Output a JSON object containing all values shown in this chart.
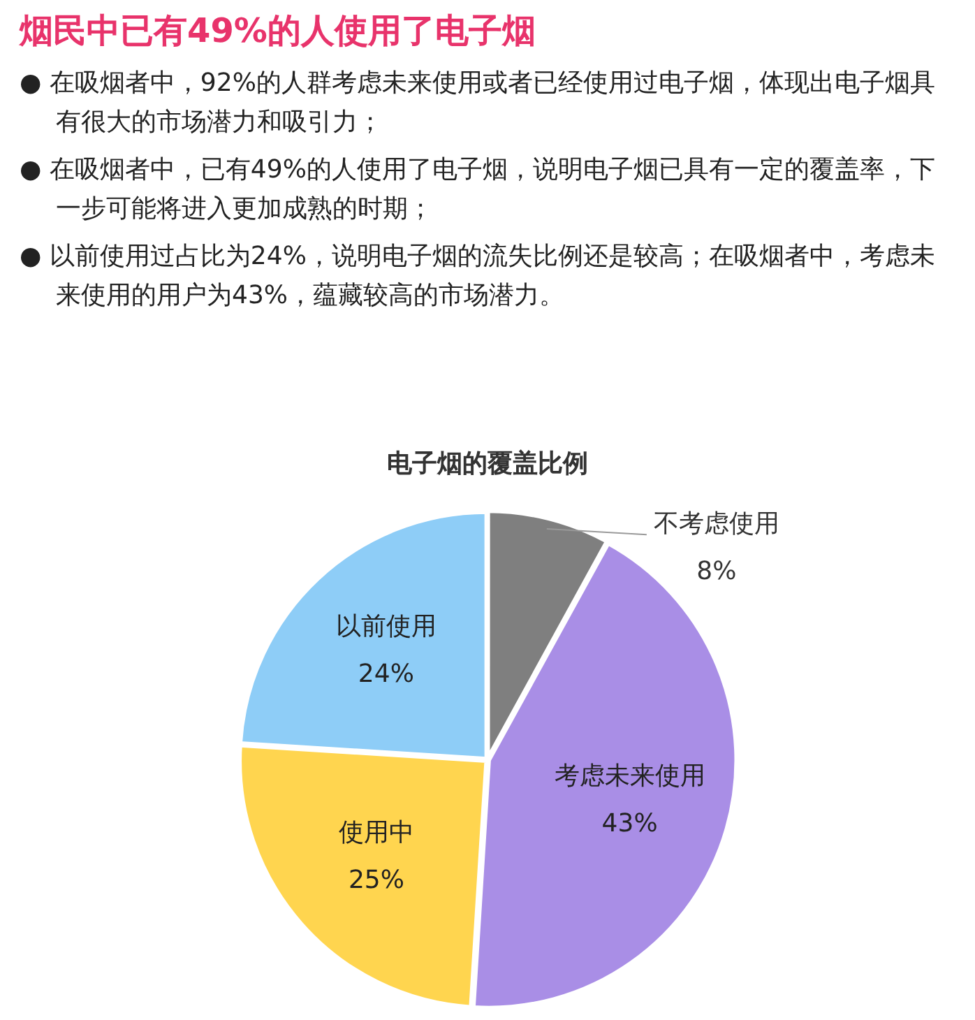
{
  "chart_data": {
    "type": "pie",
    "title": "烟民中已有49%的人使用了电子烟",
    "subtitle": "电子烟的覆盖比例",
    "annotations": [
      "● 在吸烟者中，92%的人群考虑未来使用或者已经使用过电子烟，体现出电子烟具有很大的市场潜力和吸引力；",
      "● 在吸烟者中，已有49%的人使用了电子烟，说明电子烟已具有一定的覆盖率，下一步可能将进入更加成熟的时期；",
      "● 以前使用过占比为24%，说明电子烟的流失比例还是较高；在吸烟者中，考虑未来使用的用户为43%，蕴藏较高的市场潜力。"
    ],
    "categories": [
      "不考虑使用",
      "考虑未来使用",
      "使用中",
      "以前使用"
    ],
    "values": [
      8,
      43,
      25,
      24
    ],
    "colors": [
      "#7f7f7f",
      "#a98ee6",
      "#ffd54f",
      "#8ecdf7"
    ],
    "value_labels": [
      "8%",
      "43%",
      "25%",
      "24%"
    ],
    "legend": false
  }
}
